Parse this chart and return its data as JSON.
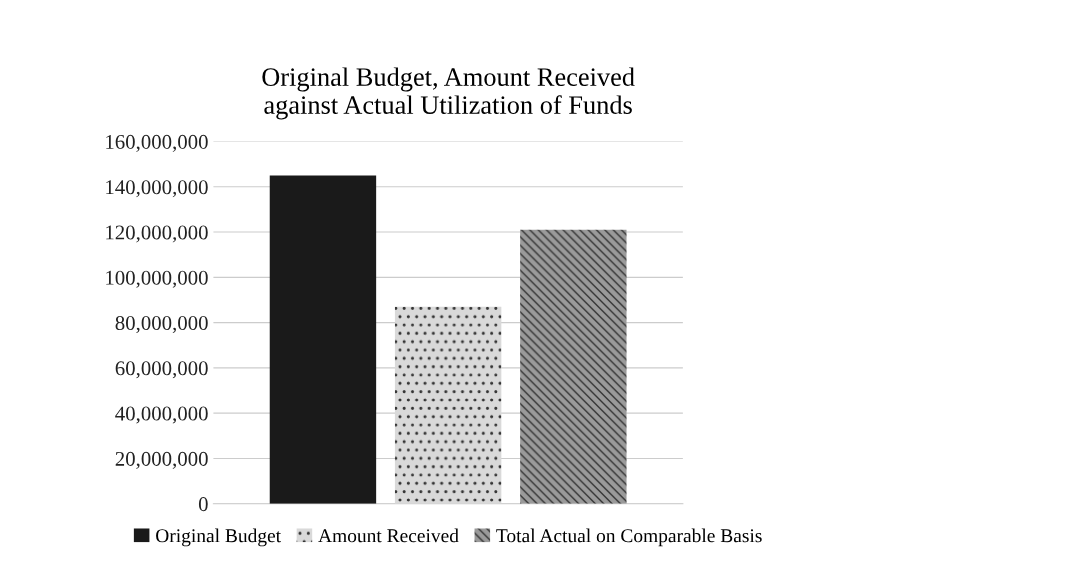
{
  "chart_data": {
    "type": "bar",
    "title": "Original Budget, Amount Received\nagainst Actual Utilization of Funds",
    "categories": [
      null
    ],
    "series": [
      {
        "name": "Original Budget",
        "color": "#1a1a1a",
        "values": [
          145000000
        ]
      },
      {
        "name": "Amount Received",
        "color": "#d9d9d9",
        "values": [
          87000000
        ]
      },
      {
        "name": "Total Actual on Comparable Basis",
        "color": "#9a9a9a",
        "values": [
          121000000
        ]
      }
    ],
    "ylim": [
      0,
      160000000
    ],
    "yticks": [
      0,
      {
        "value": 20000000,
        "label": "20,000,000"
      },
      {
        "value": 40000000,
        "label": "40,000,000"
      },
      {
        "value": 60000000,
        "label": "60,000,000"
      },
      {
        "value": 80000000,
        "label": "80,000,000"
      },
      {
        "value": 100000000,
        "label": "100,000,000"
      },
      {
        "value": 120000000,
        "label": "120,000,000"
      },
      {
        "value": 140000000,
        "label": "140,000,000"
      },
      {
        "value": 160000000,
        "label": "160,000,000"
      }
    ],
    "grid": "y",
    "legend": "bottom"
  }
}
